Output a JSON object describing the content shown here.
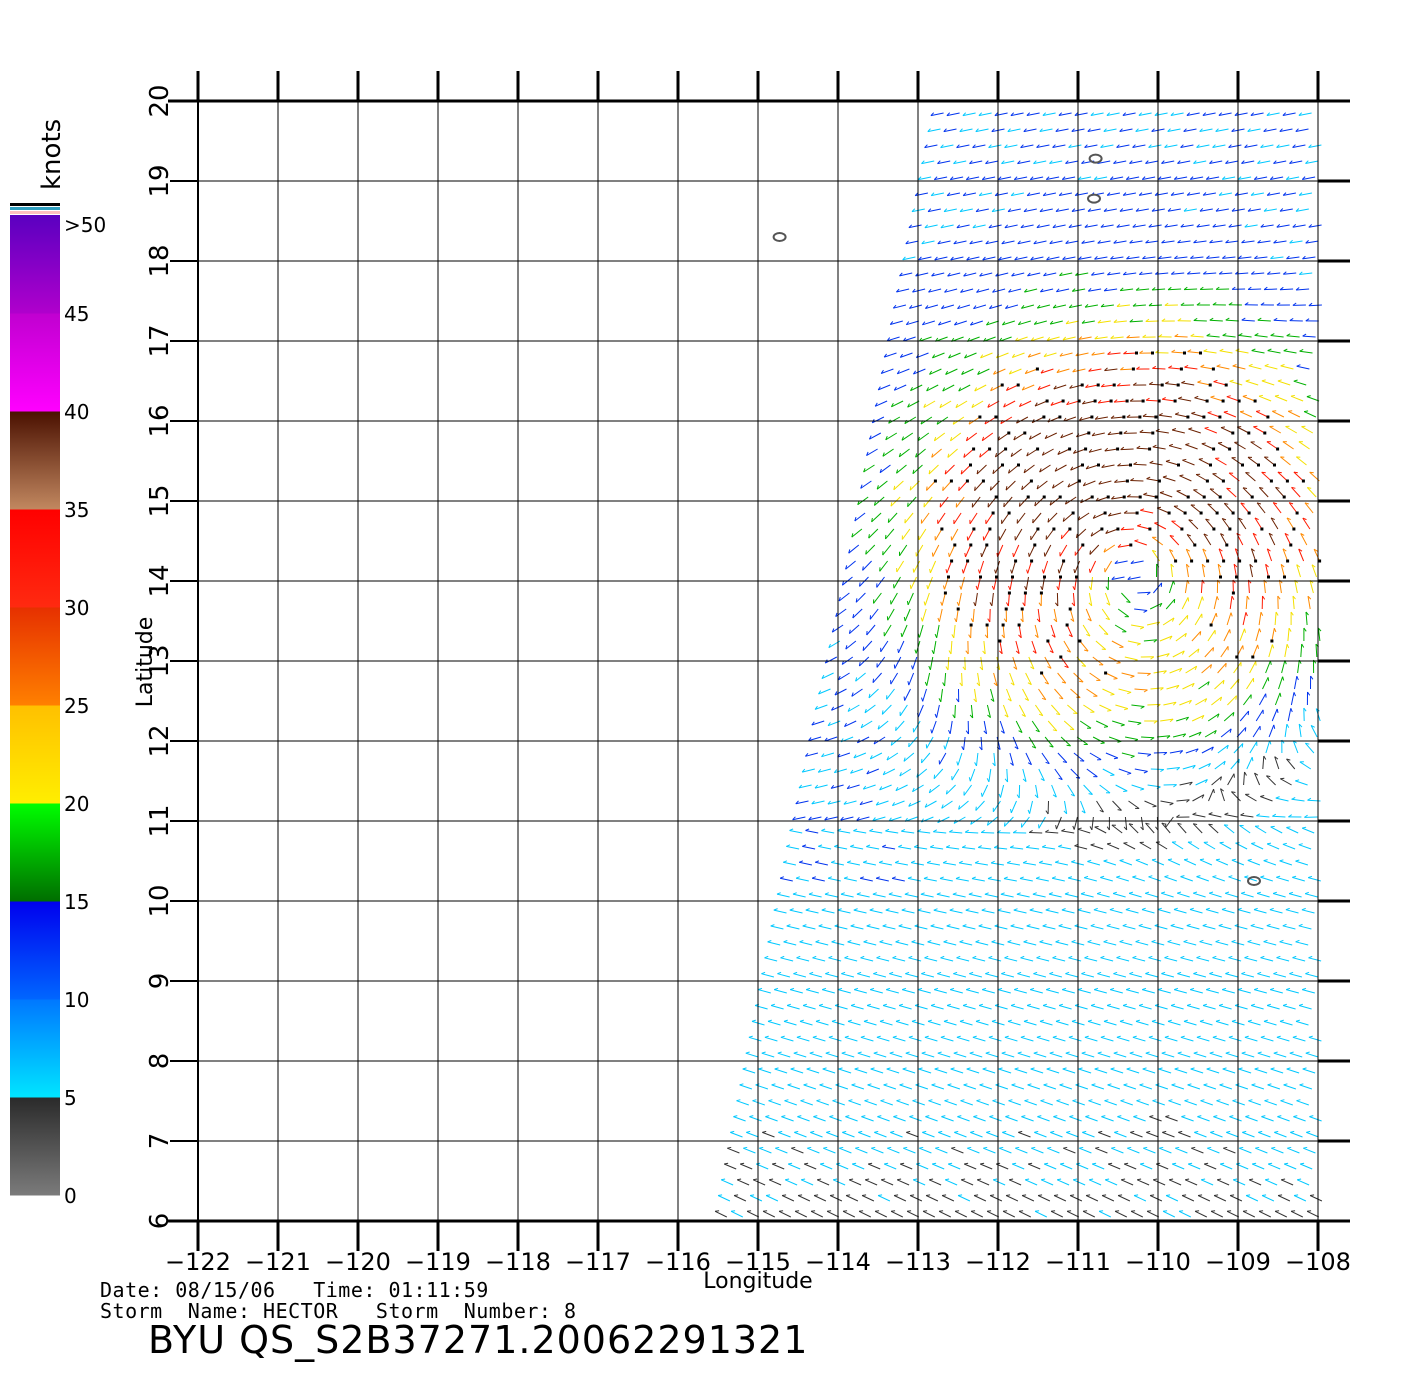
{
  "colorbar": {
    "unit_label": "knots",
    "labels": [
      ">50",
      "45",
      "40",
      "35",
      "30",
      "25",
      "20",
      "15",
      "10",
      "5",
      "0"
    ],
    "segments": [
      {
        "from": "#7b7b7b",
        "to": "#2a2a2a"
      },
      {
        "from": "#00e5ff",
        "to": "#0077ff"
      },
      {
        "from": "#0066ff",
        "to": "#0000ee"
      },
      {
        "from": "#006e00",
        "to": "#00ff00"
      },
      {
        "from": "#ffee00",
        "to": "#ffc000"
      },
      {
        "from": "#ff8000",
        "to": "#e63000"
      },
      {
        "from": "#ff2a10",
        "to": "#ff0000"
      },
      {
        "from": "#c28860",
        "to": "#4a1000"
      },
      {
        "from": "#ff00ff",
        "to": "#c000d0"
      },
      {
        "from": "#b000cc",
        "to": "#5a00c0"
      }
    ],
    "top_strips": [
      "#ffc0c0",
      "#30a0c0",
      "#000000"
    ]
  },
  "map": {
    "x_axis_label": "Longitude",
    "y_axis_label": "Latitude",
    "lon_ticks": [
      "−122",
      "−121",
      "−120",
      "−119",
      "−118",
      "−117",
      "−116",
      "−115",
      "−114",
      "−113",
      "−112",
      "−111",
      "−110",
      "−109",
      "−108"
    ],
    "lat_ticks": [
      "6",
      "7",
      "8",
      "9",
      "10",
      "11",
      "12",
      "13",
      "14",
      "15",
      "16",
      "17",
      "18",
      "19",
      "20"
    ],
    "lon_range": [
      -122,
      -108
    ],
    "lat_range": [
      6,
      20
    ],
    "islands": [
      {
        "lon": -114.73,
        "lat": 18.3
      },
      {
        "lon": -110.8,
        "lat": 18.78
      },
      {
        "lon": -110.78,
        "lat": 19.28
      },
      {
        "lon": -108.8,
        "lat": 10.25
      }
    ],
    "swath_corners": [
      {
        "lon": -112.75,
        "lat": 20.0
      },
      {
        "lon": -107.9,
        "lat": 20.0
      },
      {
        "lon": -107.9,
        "lat": 6.0
      },
      {
        "lon": -115.5,
        "lat": 6.0
      }
    ]
  },
  "footer": {
    "date_line": "Date: 08/15/06   Time: 01:11:59",
    "storm_line": "Storm  Name: HECTOR   Storm  Number: 8",
    "title": "BYU  QS_S2B37271.20062291321"
  }
}
